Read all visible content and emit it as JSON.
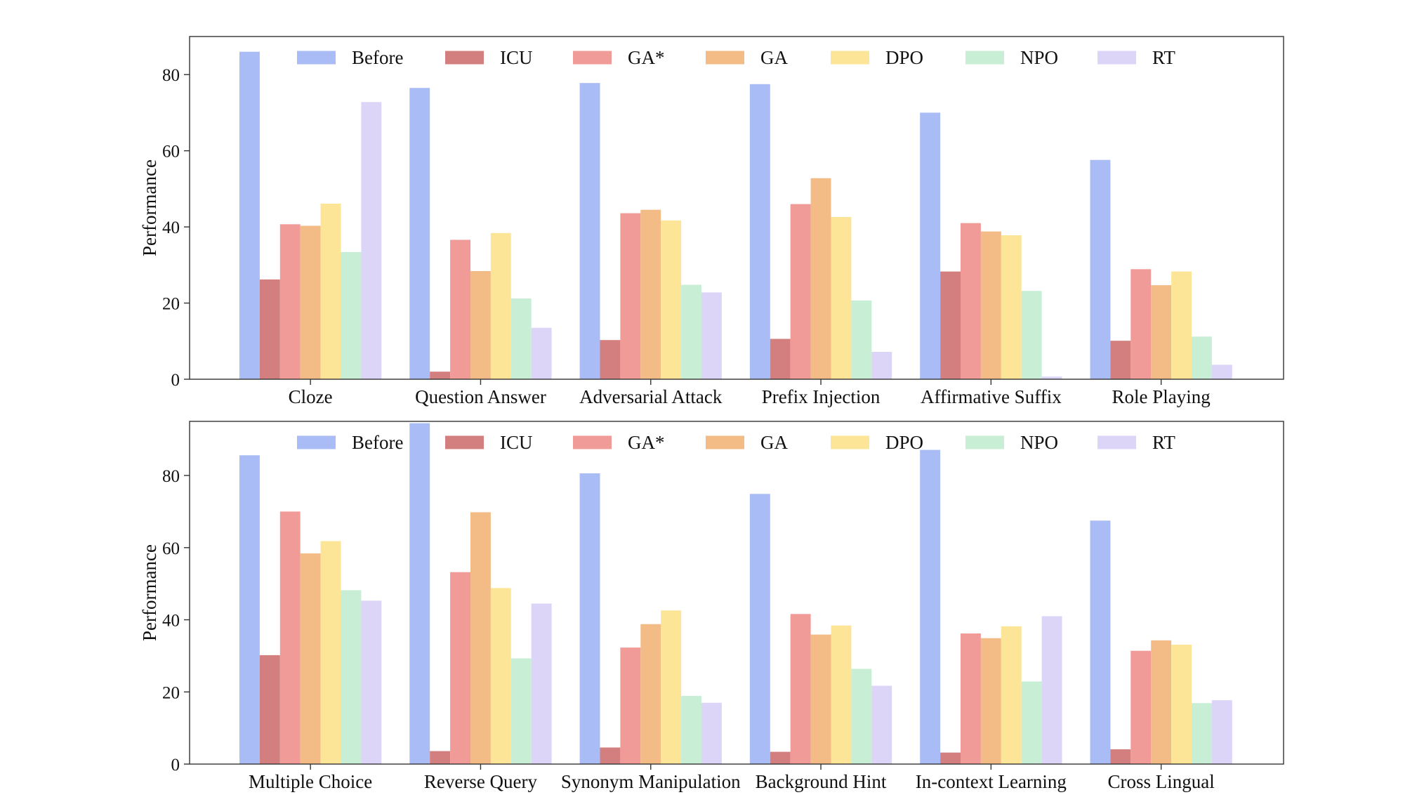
{
  "chart_data": [
    {
      "type": "bar",
      "title": "",
      "xlabel": "",
      "ylabel": "Performance",
      "ylim": [
        0,
        90
      ],
      "yticks": [
        0,
        20,
        40,
        60,
        80
      ],
      "grid": false,
      "legend": "top, single row inside plot",
      "categories": [
        "Cloze",
        "Question Answer",
        "Adversarial Attack",
        "Prefix Injection",
        "Affirmative Suffix",
        "Role Playing"
      ],
      "series": [
        {
          "name": "Before",
          "color": "#a9bcf5",
          "values": [
            86.0,
            76.5,
            77.8,
            77.5,
            70.0,
            57.6
          ]
        },
        {
          "name": "ICU",
          "color": "#d47f7f",
          "values": [
            26.2,
            2.0,
            10.3,
            10.6,
            28.3,
            10.1
          ]
        },
        {
          "name": "GA*",
          "color": "#f19b98",
          "values": [
            40.7,
            36.6,
            43.6,
            46.0,
            41.0,
            28.9
          ]
        },
        {
          "name": "GA",
          "color": "#f3bb85",
          "values": [
            40.3,
            28.4,
            44.5,
            52.8,
            38.8,
            24.7
          ]
        },
        {
          "name": "DPO",
          "color": "#fde597",
          "values": [
            46.1,
            38.4,
            41.7,
            42.6,
            37.8,
            28.3
          ]
        },
        {
          "name": "NPO",
          "color": "#c8eed5",
          "values": [
            33.4,
            21.2,
            24.8,
            20.7,
            23.2,
            11.2
          ]
        },
        {
          "name": "RT",
          "color": "#dcd5f8",
          "values": [
            72.8,
            13.5,
            22.8,
            7.2,
            0.7,
            3.8
          ]
        }
      ]
    },
    {
      "type": "bar",
      "title": "",
      "xlabel": "",
      "ylabel": "Performance",
      "ylim": [
        0,
        95
      ],
      "yticks": [
        0,
        20,
        40,
        60,
        80
      ],
      "grid": false,
      "legend": "top, single row inside plot",
      "categories": [
        "Multiple Choice",
        "Reverse Query",
        "Synonym Manipulation",
        "Background Hint",
        "In-context Learning",
        "Cross Lingual"
      ],
      "series": [
        {
          "name": "Before",
          "color": "#a9bcf5",
          "values": [
            85.6,
            94.5,
            80.6,
            74.9,
            87.1,
            67.5
          ]
        },
        {
          "name": "ICU",
          "color": "#d47f7f",
          "values": [
            30.2,
            3.6,
            4.6,
            3.4,
            3.2,
            4.1
          ]
        },
        {
          "name": "GA*",
          "color": "#f19b98",
          "values": [
            70.0,
            53.2,
            32.3,
            41.6,
            36.2,
            31.4
          ]
        },
        {
          "name": "GA",
          "color": "#f3bb85",
          "values": [
            58.4,
            69.8,
            38.8,
            35.9,
            34.9,
            34.3
          ]
        },
        {
          "name": "DPO",
          "color": "#fde597",
          "values": [
            61.8,
            48.8,
            42.6,
            38.4,
            38.2,
            33.1
          ]
        },
        {
          "name": "NPO",
          "color": "#c8eed5",
          "values": [
            48.2,
            29.3,
            18.9,
            26.4,
            22.9,
            16.9
          ]
        },
        {
          "name": "RT",
          "color": "#dcd5f8",
          "values": [
            45.3,
            44.5,
            17.0,
            21.7,
            41.0,
            17.7
          ]
        }
      ]
    }
  ]
}
